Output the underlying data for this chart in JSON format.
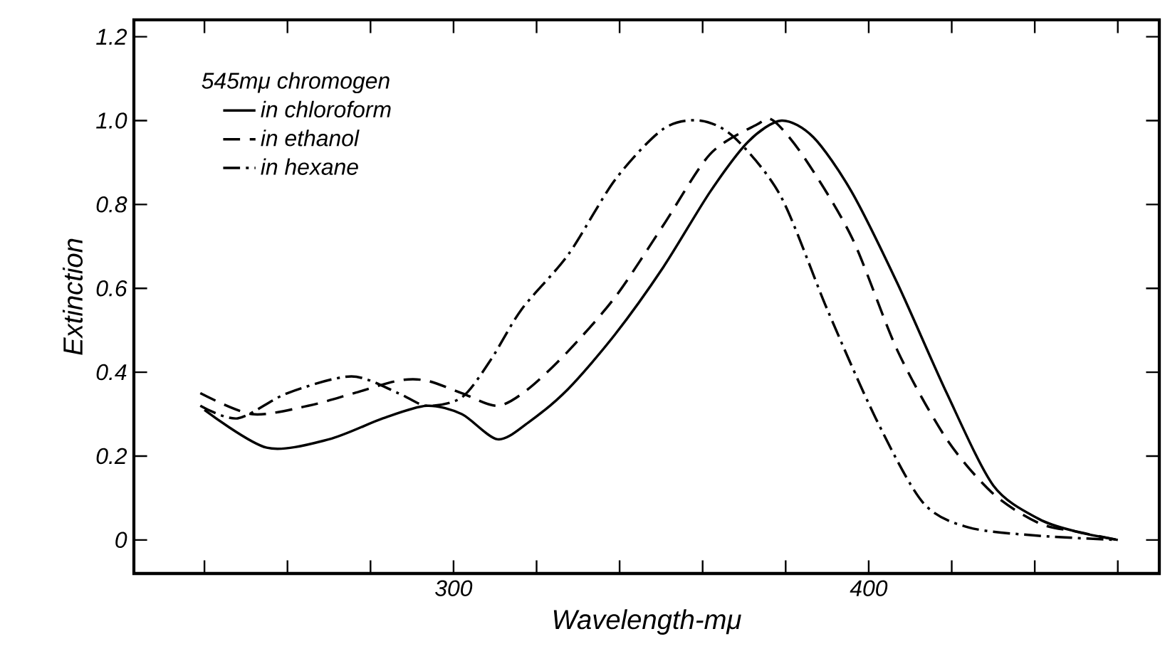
{
  "chart_data": {
    "type": "line",
    "xlabel": "Wavelength-mμ",
    "ylabel": "Extinction",
    "legend_title": "545mμ chromogen",
    "legend": "top left",
    "xlim": [
      223,
      470
    ],
    "ylim": [
      -0.08,
      1.24
    ],
    "xticks": [
      {
        "value": 240,
        "label": null
      },
      {
        "value": 260,
        "label": null
      },
      {
        "value": 280,
        "label": null
      },
      300,
      {
        "value": 320,
        "label": null
      },
      {
        "value": 340,
        "label": null
      },
      {
        "value": 360,
        "label": null
      },
      {
        "value": 380,
        "label": null
      },
      400,
      {
        "value": 420,
        "label": null
      },
      {
        "value": 440,
        "label": null
      },
      {
        "value": 460,
        "label": null
      }
    ],
    "yticks": [
      0,
      0.2,
      0.4,
      0.6,
      0.8,
      {
        "value": 1,
        "label": "1.0"
      },
      1.2
    ],
    "series": [
      {
        "name": "in chloroform",
        "color": "#000000",
        "line_style": "solid",
        "x": [
          240,
          255,
          270,
          283,
          293.5,
          302,
          310.6,
          318,
          327.6,
          338.9,
          350.5,
          361.8,
          371,
          379,
          386.7,
          395.9,
          407,
          418.8,
          430,
          441,
          450,
          460
        ],
        "values": [
          0.31,
          0.22,
          0.24,
          0.29,
          0.32,
          0.3,
          0.24,
          0.28,
          0.36,
          0.49,
          0.65,
          0.83,
          0.95,
          1.0,
          0.96,
          0.83,
          0.61,
          0.35,
          0.13,
          0.05,
          0.02,
          0.0
        ]
      },
      {
        "name": "in ethanol",
        "color": "#000000",
        "line_style": "dashed",
        "x": [
          239,
          251.5,
          265,
          276,
          286.7,
          293.5,
          302,
          310.6,
          318,
          327.6,
          339,
          350.5,
          361.8,
          373,
          377,
          384.6,
          396,
          407,
          418.8,
          430,
          441,
          450,
          460
        ],
        "values": [
          0.35,
          0.3,
          0.32,
          0.35,
          0.38,
          0.38,
          0.35,
          0.32,
          0.36,
          0.45,
          0.58,
          0.75,
          0.92,
          0.99,
          1.0,
          0.91,
          0.72,
          0.45,
          0.24,
          0.11,
          0.04,
          0.02,
          0.0
        ]
      },
      {
        "name": "in hexane",
        "color": "#000000",
        "line_style": "dashdot",
        "x": [
          239,
          248,
          260,
          275.4,
          286.7,
          293.5,
          302,
          309,
          316.4,
          327.6,
          339,
          350.5,
          359.4,
          367.6,
          378.8,
          390,
          401.7,
          413,
          424,
          441,
          460
        ],
        "values": [
          0.32,
          0.29,
          0.35,
          0.39,
          0.35,
          0.32,
          0.34,
          0.43,
          0.55,
          0.68,
          0.86,
          0.98,
          1.0,
          0.96,
          0.82,
          0.55,
          0.29,
          0.09,
          0.03,
          0.01,
          0.0
        ]
      }
    ]
  }
}
